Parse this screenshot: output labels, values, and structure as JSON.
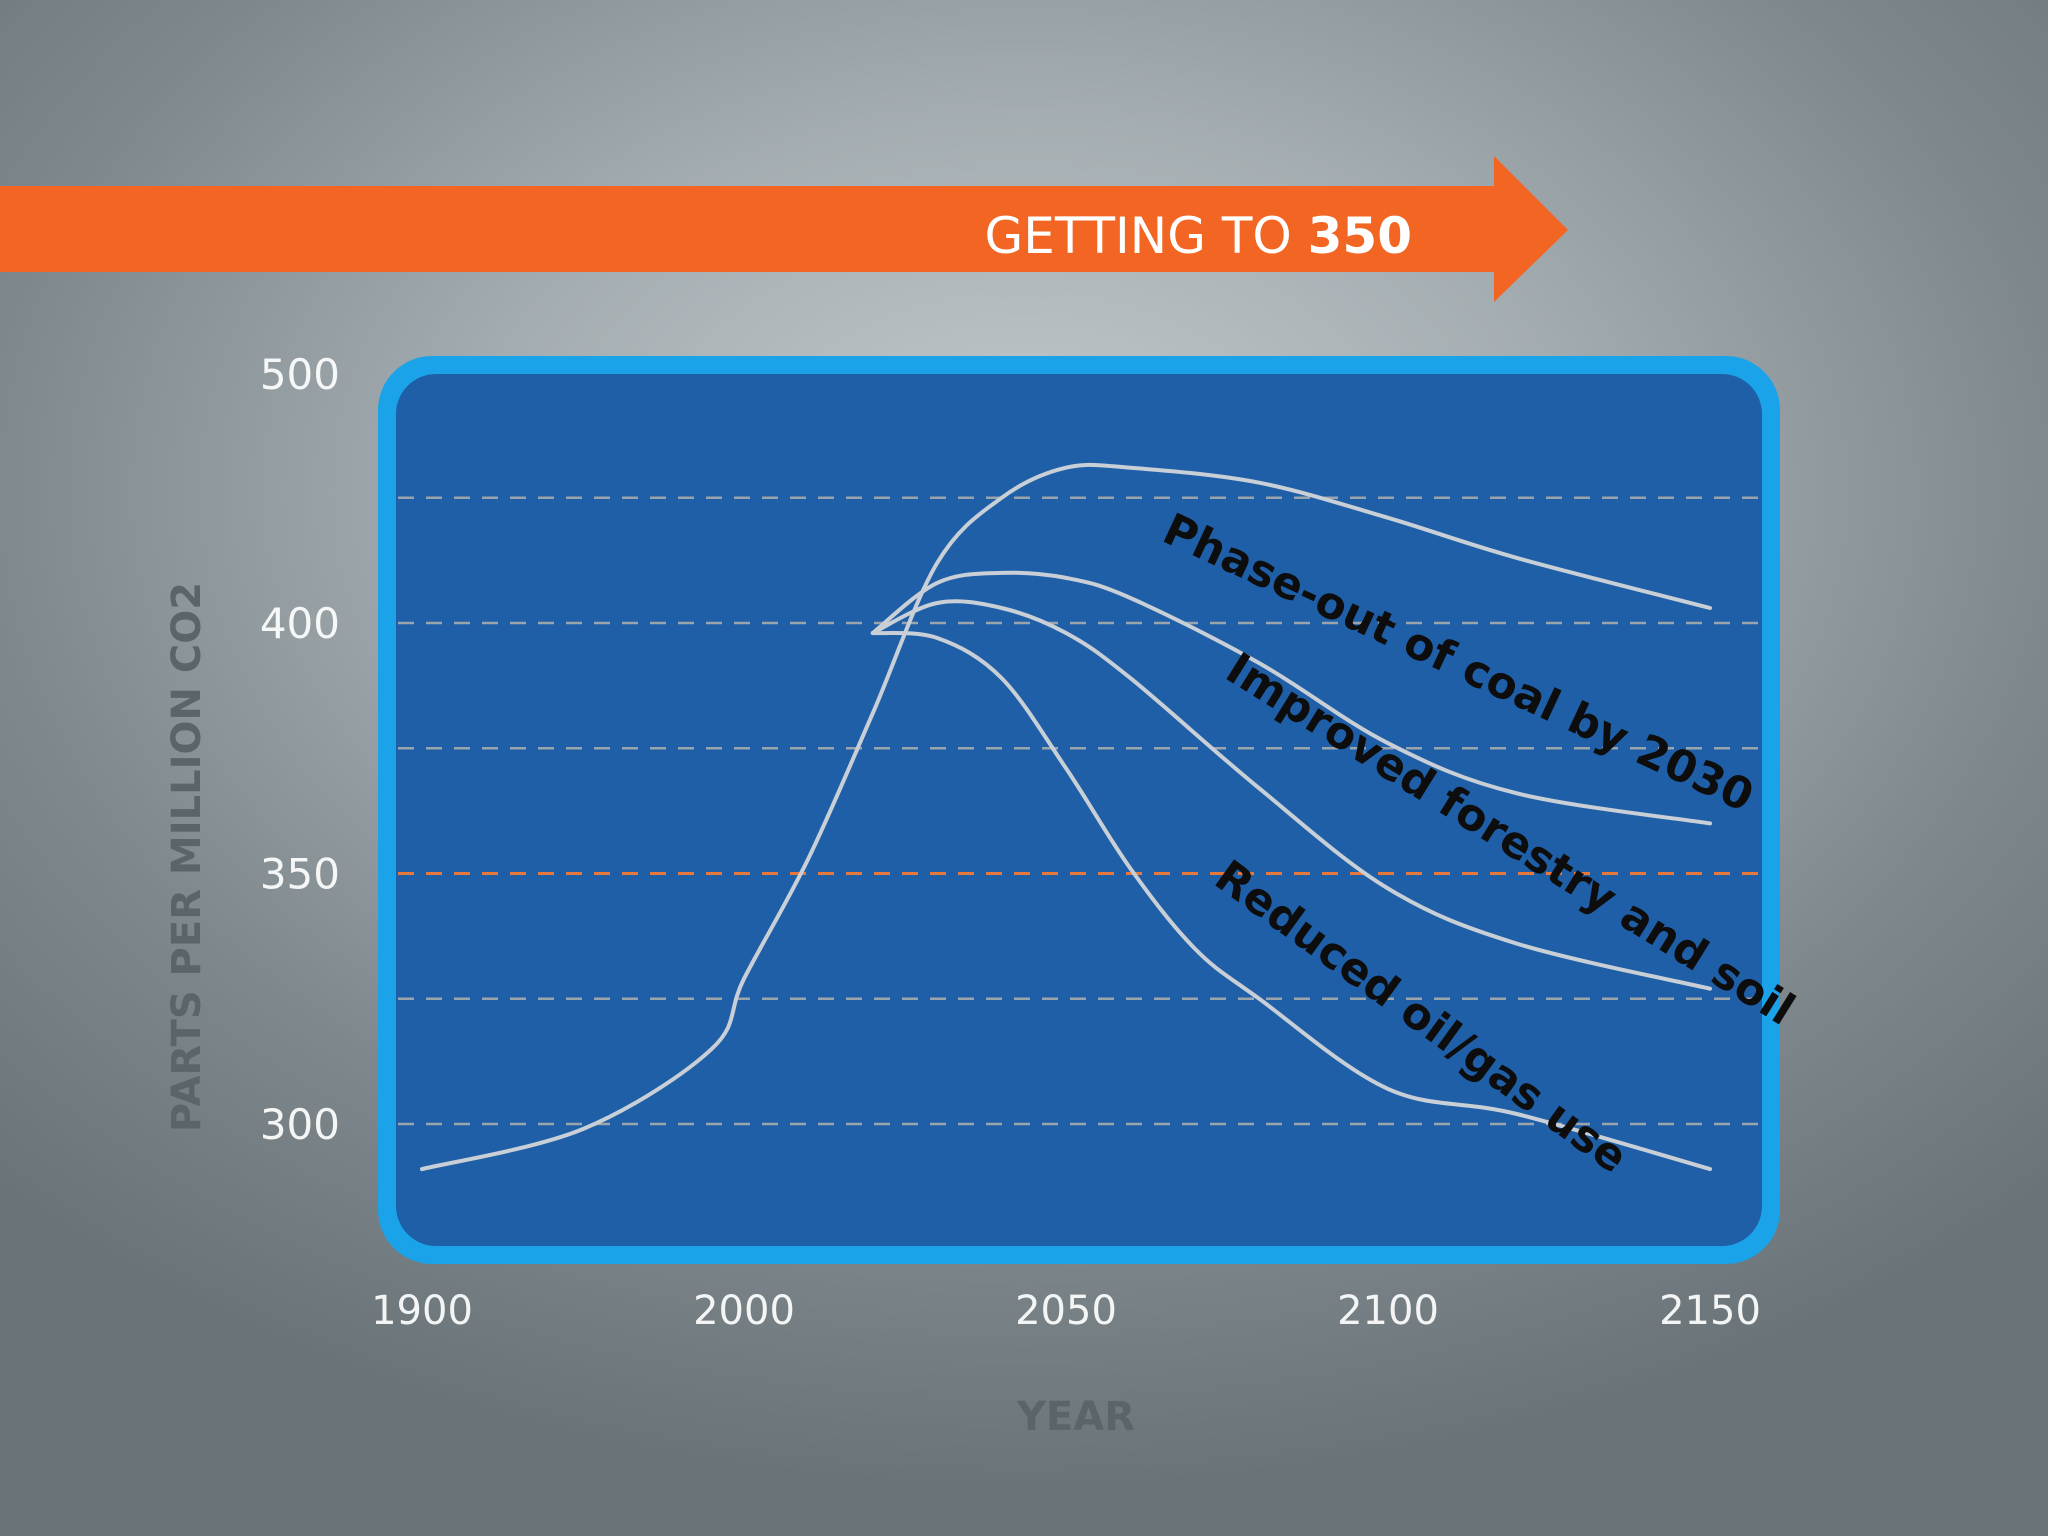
{
  "chart_data": {
    "type": "line",
    "title_prefix": "GETTING TO ",
    "title_highlight": "350",
    "xlabel": "YEAR",
    "ylabel": "PARTS PER MILLION CO2",
    "x_ticks": [
      "1900",
      "2000",
      "2050",
      "2100",
      "2150"
    ],
    "y_ticks": [
      300,
      350,
      400,
      500
    ],
    "gridlines": [
      300,
      325,
      350,
      375,
      400,
      425
    ],
    "target_line": 350,
    "colors": {
      "arrow": "#f26522",
      "frame": "#1aa3e8",
      "plot_bg": "#1f5fa8",
      "line": "#c8cfd6",
      "target": "#e8773a"
    },
    "annotations": [
      {
        "text": "Phase-out of coal by 2030"
      },
      {
        "text": "Improved forestry and soil"
      },
      {
        "text": "Reduced oil/gas use"
      }
    ],
    "series": [
      {
        "x": [
          1900,
          1950,
          1990,
          2000,
          2010,
          2020,
          2030,
          2040,
          2050,
          2060,
          2080,
          2100,
          2120,
          2150
        ],
        "y": [
          291,
          299,
          315,
          329,
          353,
          382,
          412,
          425,
          431,
          431,
          428,
          421,
          413,
          403
        ]
      },
      {
        "x": [
          2020,
          2030,
          2040,
          2050,
          2060,
          2080,
          2100,
          2120,
          2150
        ],
        "y": [
          398,
          408,
          410,
          409,
          405,
          392,
          376,
          366,
          360
        ]
      },
      {
        "x": [
          2020,
          2030,
          2040,
          2050,
          2060,
          2080,
          2100,
          2120,
          2150
        ],
        "y": [
          398,
          404,
          403,
          398,
          389,
          367,
          347,
          336,
          327
        ]
      },
      {
        "x": [
          2020,
          2030,
          2040,
          2050,
          2060,
          2070,
          2080,
          2100,
          2120,
          2150
        ],
        "y": [
          398,
          397,
          389,
          371,
          351,
          335,
          325,
          307,
          302,
          291
        ]
      }
    ]
  }
}
